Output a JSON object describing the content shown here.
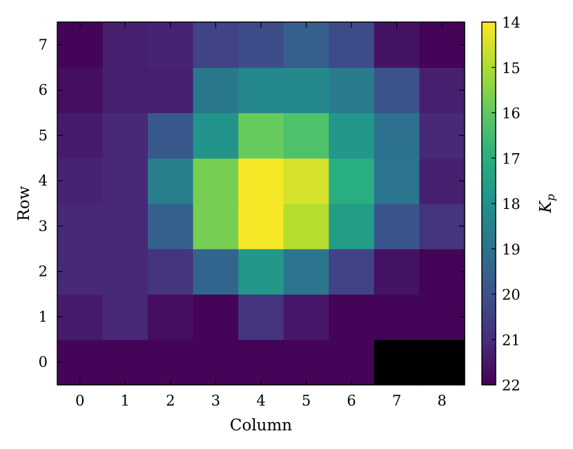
{
  "chart_data": {
    "type": "heatmap",
    "xlabel": "Column",
    "ylabel": "Row",
    "x_ticks": [
      "0",
      "1",
      "2",
      "3",
      "4",
      "5",
      "6",
      "7",
      "8"
    ],
    "y_ticks": [
      "0",
      "1",
      "2",
      "3",
      "4",
      "5",
      "6",
      "7"
    ],
    "colorbar": {
      "label": "K_p",
      "label_main": "K",
      "label_sub": "p",
      "ticks": [
        "14",
        "15",
        "16",
        "17",
        "18",
        "19",
        "20",
        "21",
        "22"
      ],
      "range": [
        14,
        22
      ],
      "inverted": true,
      "colormap": "viridis"
    },
    "values_by_row": [
      [
        21.9,
        21.9,
        21.9,
        21.9,
        21.9,
        21.9,
        21.9,
        null,
        null
      ],
      [
        21.4,
        21.1,
        21.7,
        21.9,
        20.8,
        21.5,
        21.9,
        21.9,
        21.9
      ],
      [
        21.1,
        21.1,
        20.8,
        19.4,
        17.8,
        18.9,
        20.4,
        21.6,
        21.9
      ],
      [
        21.1,
        21.1,
        19.6,
        15.7,
        14.1,
        14.9,
        17.6,
        19.9,
        20.8
      ],
      [
        21.2,
        21.1,
        18.6,
        15.7,
        14.1,
        14.5,
        17.0,
        18.9,
        21.3
      ],
      [
        21.4,
        21.1,
        19.8,
        17.9,
        15.9,
        16.3,
        17.8,
        19.0,
        21.1
      ],
      [
        21.7,
        21.3,
        21.3,
        18.8,
        18.3,
        18.3,
        18.7,
        20.0,
        21.3
      ],
      [
        21.9,
        21.3,
        21.2,
        20.4,
        20.2,
        19.6,
        20.2,
        21.6,
        21.9
      ]
    ],
    "missing_color": "#000000"
  }
}
